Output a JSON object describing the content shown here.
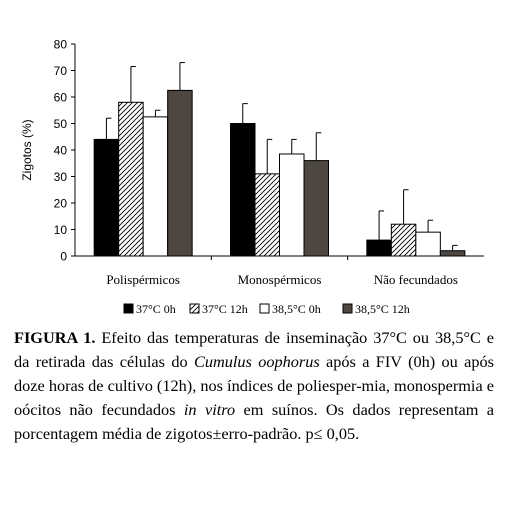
{
  "chart_data": {
    "type": "bar",
    "ylabel": "Zigotos (%)",
    "ylim": [
      0,
      80
    ],
    "yticks": [
      0,
      10,
      20,
      30,
      40,
      50,
      60,
      70,
      80
    ],
    "categories": [
      "Polispérmicos",
      "Monospérmicos",
      "Não fecundados"
    ],
    "series": [
      {
        "name": "37°C 0h",
        "values": [
          44,
          50,
          6
        ],
        "errors": [
          8,
          7.5,
          11
        ],
        "fill": "#000000",
        "pattern": "solid"
      },
      {
        "name": "37°C 12h",
        "values": [
          58,
          31,
          12
        ],
        "errors": [
          13.5,
          13,
          13
        ],
        "fill": "#ffffff",
        "pattern": "diagonal-hatch"
      },
      {
        "name": "38,5°C 0h",
        "values": [
          52.5,
          38.5,
          9
        ],
        "errors": [
          2.5,
          5.5,
          4.5
        ],
        "fill": "#ffffff",
        "pattern": "none"
      },
      {
        "name": "38,5°C 12h",
        "values": [
          62.5,
          36,
          2
        ],
        "errors": [
          10.5,
          10.5,
          2
        ],
        "fill": "#4d4641",
        "pattern": "solid"
      }
    ],
    "grid": false,
    "legend_position": "bottom"
  },
  "caption": {
    "label": "FIGURA 1.",
    "seg1": " Efeito das temperaturas de inseminação 37°C ou 38,5°C e da retirada das células do ",
    "italic1": "Cumulus oophorus",
    "seg2": " após a FIV (0h) ou após doze horas de cultivo (12h), nos índices de poliesper-mia, monospermia e oócitos não fecundados ",
    "italic2": "in vitro",
    "seg3": " em suínos. Os dados representam a porcentagem média de zigotos±erro-padrão. p≤ 0,05."
  }
}
